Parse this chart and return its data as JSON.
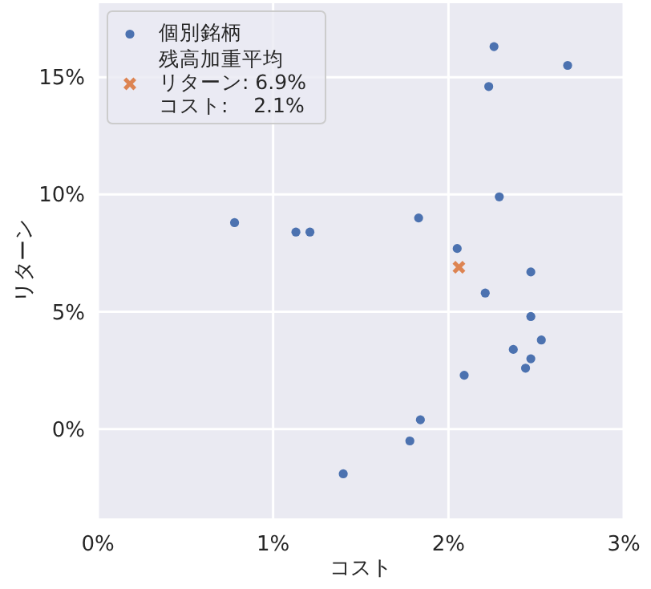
{
  "chart_data": {
    "type": "scatter",
    "xlabel": "コスト",
    "ylabel": "リターン",
    "xlim": [
      0,
      3
    ],
    "ylim": [
      -3.8,
      18.15
    ],
    "xticks": [
      {
        "value": 0,
        "label": "0%"
      },
      {
        "value": 1,
        "label": "1%"
      },
      {
        "value": 2,
        "label": "2%"
      },
      {
        "value": 3,
        "label": "3%"
      }
    ],
    "yticks": [
      {
        "value": 0,
        "label": "0%"
      },
      {
        "value": 5,
        "label": "5%"
      },
      {
        "value": 10,
        "label": "10%"
      },
      {
        "value": 15,
        "label": "15%"
      }
    ],
    "grid": true,
    "legend": "top left",
    "series": [
      {
        "name": "個別銘柄",
        "color": "#4c72b0",
        "marker": "circle",
        "x": [
          0.78,
          1.13,
          1.21,
          1.83,
          2.26,
          2.68,
          2.23,
          2.29,
          2.05,
          2.47,
          2.21,
          2.47,
          2.53,
          2.37,
          2.47,
          2.44,
          2.09,
          1.84,
          1.78,
          1.4
        ],
        "values": [
          8.8,
          8.4,
          8.4,
          9.0,
          16.3,
          15.5,
          14.6,
          9.9,
          7.7,
          6.7,
          5.8,
          4.8,
          3.8,
          3.4,
          3.0,
          2.6,
          2.3,
          0.4,
          -0.5,
          -1.9
        ]
      },
      {
        "name": "残高加重平均リターン: 6.9%\nコスト:    2.1%",
        "color": "#dd8452",
        "marker": "cross",
        "x": [
          2.06
        ],
        "values": [
          6.9
        ]
      }
    ]
  }
}
